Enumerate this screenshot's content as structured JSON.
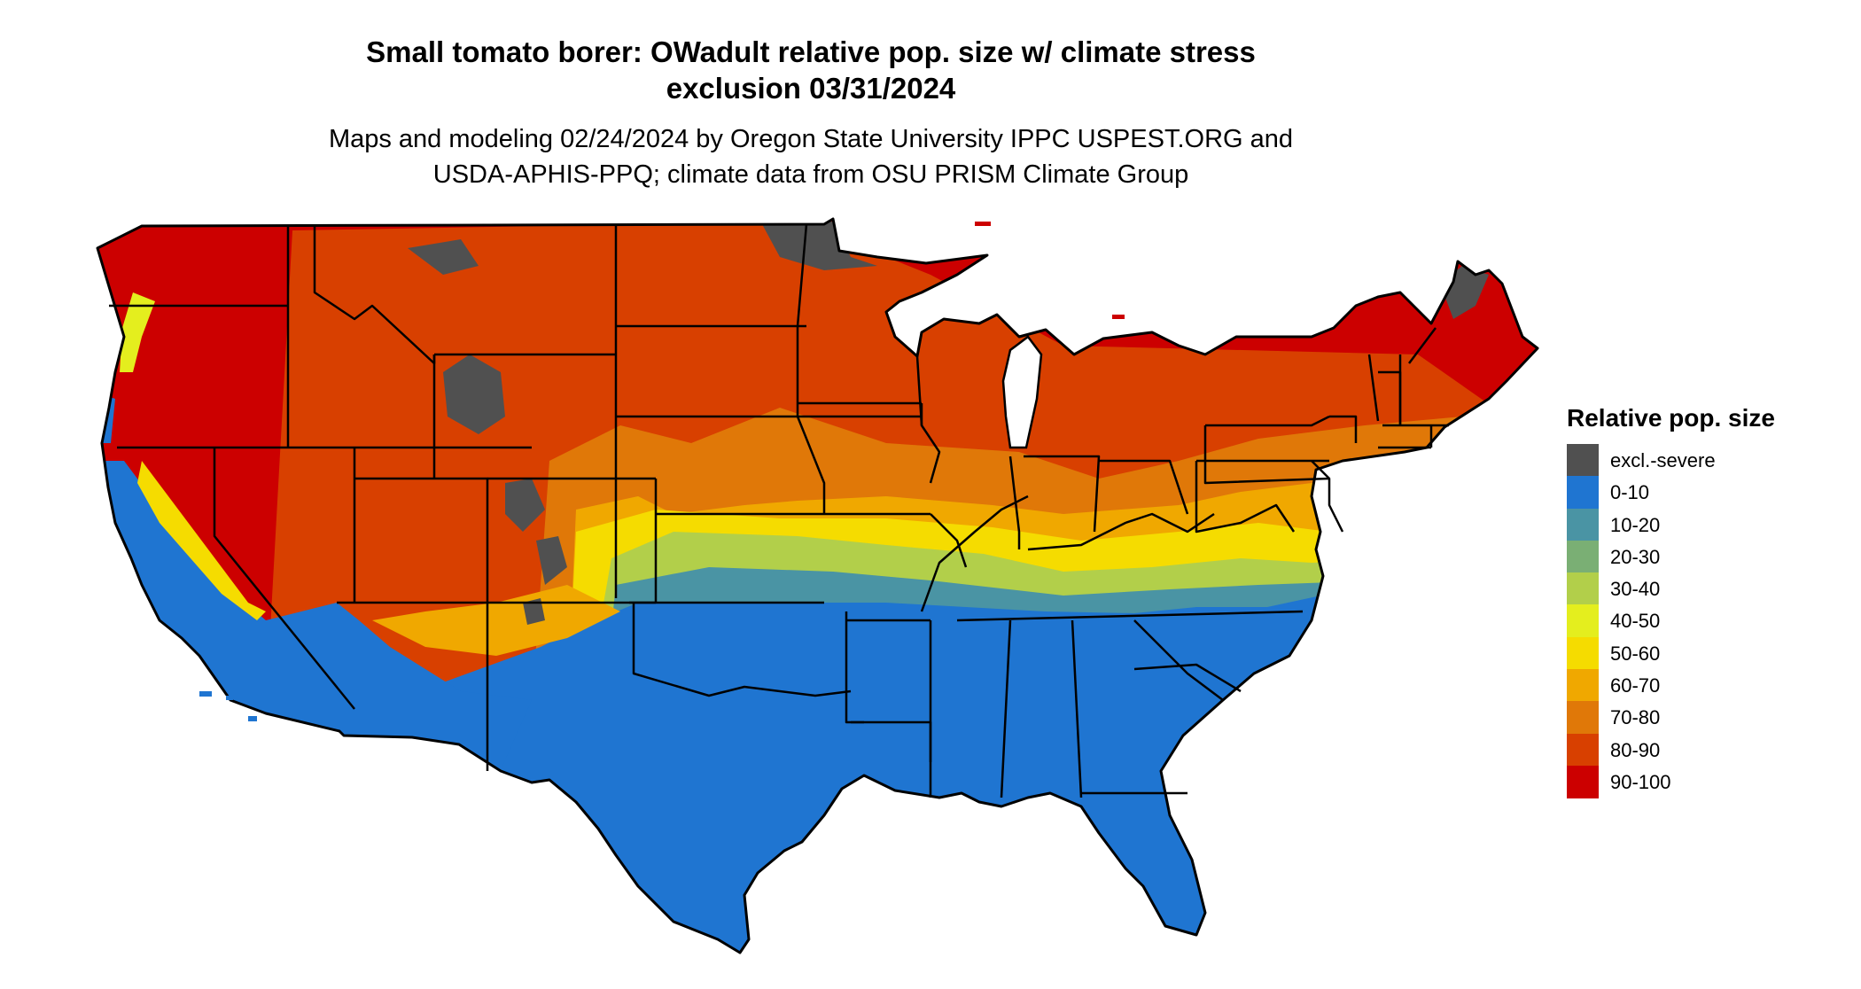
{
  "title_lines": [
    "Small tomato borer: OWadult relative pop. size w/ climate stress",
    "exclusion 03/31/2024"
  ],
  "subtitle_lines": [
    "Maps and modeling 02/24/2024 by Oregon State University IPPC USPEST.ORG and",
    "USDA-APHIS-PPQ; climate data from OSU PRISM Climate Group"
  ],
  "legend": {
    "title": "Relative pop. size",
    "items": [
      {
        "label": "excl.-severe",
        "color": "#505050"
      },
      {
        "label": "0-10",
        "color": "#1f75d1"
      },
      {
        "label": "10-20",
        "color": "#4a94a4"
      },
      {
        "label": "20-30",
        "color": "#7aaf74"
      },
      {
        "label": "30-40",
        "color": "#b2cf4a"
      },
      {
        "label": "40-50",
        "color": "#e4ee1e"
      },
      {
        "label": "50-60",
        "color": "#f5dc00"
      },
      {
        "label": "60-70",
        "color": "#f0a800"
      },
      {
        "label": "70-80",
        "color": "#e07808"
      },
      {
        "label": "80-90",
        "color": "#d84000"
      },
      {
        "label": "90-100",
        "color": "#cc0000"
      }
    ]
  }
}
